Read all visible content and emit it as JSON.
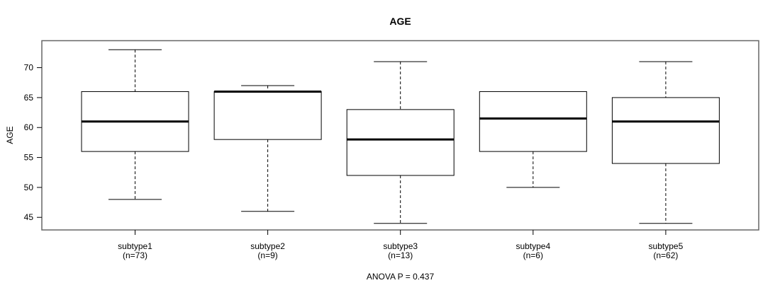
{
  "figure": {
    "title": "AGE",
    "y_axis_title": "AGE",
    "annotation": "ANOVA P = 0.437"
  },
  "chart_data": {
    "type": "boxplot",
    "title": "AGE",
    "xlabel": "",
    "ylabel": "AGE",
    "annotation": "ANOVA P = 0.437",
    "ylim": [
      42.9,
      74.5
    ],
    "yticks": [
      45,
      50,
      55,
      60,
      65,
      70
    ],
    "grid": false,
    "legend": "none",
    "categories": [
      "subtype1",
      "subtype2",
      "subtype3",
      "subtype4",
      "subtype5"
    ],
    "category_sublabels": [
      "(n=73)",
      "(n=9)",
      "(n=13)",
      "(n=6)",
      "(n=62)"
    ],
    "series": [
      {
        "name": "subtype1",
        "n": 73,
        "whisker_low": 48,
        "q1": 56,
        "median": 61,
        "q3": 66,
        "whisker_high": 73
      },
      {
        "name": "subtype2",
        "n": 9,
        "whisker_low": 46,
        "q1": 58,
        "median": 66,
        "q3": 66,
        "whisker_high": 67
      },
      {
        "name": "subtype3",
        "n": 13,
        "whisker_low": 44,
        "q1": 52,
        "median": 58,
        "q3": 63,
        "whisker_high": 71
      },
      {
        "name": "subtype4",
        "n": 6,
        "whisker_low": 50,
        "q1": 56,
        "median": 61.5,
        "q3": 66,
        "whisker_high": 66
      },
      {
        "name": "subtype5",
        "n": 62,
        "whisker_low": 44,
        "q1": 54,
        "median": 61,
        "q3": 65,
        "whisker_high": 71
      }
    ],
    "colors": {
      "line": "#000000",
      "median": "#000000",
      "frame": "#666666",
      "background": "#ffffff",
      "text": "#000000"
    }
  }
}
